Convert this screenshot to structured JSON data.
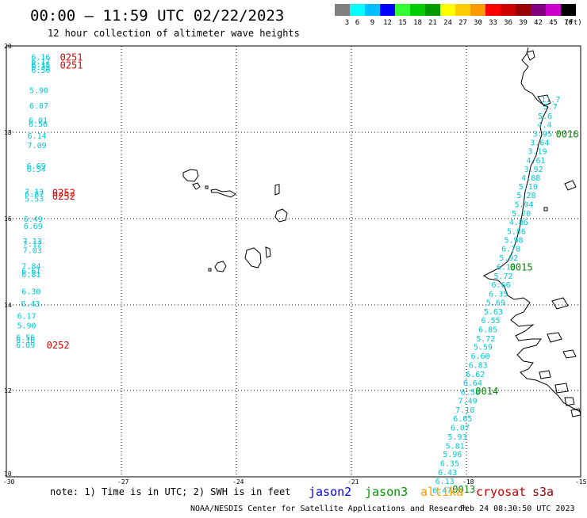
{
  "header": {
    "title": "00:00 — 11:59 UTC 02/22/2023",
    "subtitle": "12 hour collection of altimeter wave heights"
  },
  "scale": {
    "unit": "(ft)",
    "items": [
      {
        "label": "3",
        "color": "#808080"
      },
      {
        "label": "6",
        "color": "#00ffff"
      },
      {
        "label": "9",
        "color": "#00bfff"
      },
      {
        "label": "12",
        "color": "#0000ff"
      },
      {
        "label": "15",
        "color": "#33ff33"
      },
      {
        "label": "18",
        "color": "#00cc00"
      },
      {
        "label": "21",
        "color": "#009900"
      },
      {
        "label": "24",
        "color": "#ffff00"
      },
      {
        "label": "27",
        "color": "#ffcc00"
      },
      {
        "label": "30",
        "color": "#ff9900"
      },
      {
        "label": "33",
        "color": "#ff0000"
      },
      {
        "label": "36",
        "color": "#cc0000"
      },
      {
        "label": "39",
        "color": "#990000"
      },
      {
        "label": "42",
        "color": "#800080"
      },
      {
        "label": "45",
        "color": "#cc00cc"
      },
      {
        "label": "70",
        "color": "#000000"
      }
    ]
  },
  "axes": {
    "lon_labels": [
      "-30",
      "-27",
      "-24",
      "-21",
      "-18",
      "-15"
    ],
    "lat_labels": [
      "20",
      "18",
      "16",
      "14",
      "12",
      "10"
    ]
  },
  "footer": {
    "note": "note: 1) Time is in UTC; 2) SWH is in feet",
    "satellites": [
      {
        "name": "jason2",
        "color": "#0000ff"
      },
      {
        "name": "jason3",
        "color": "#009900"
      },
      {
        "name": "altika",
        "color": "#ff9900"
      },
      {
        "name": "cryosat",
        "color": "#cc0000"
      },
      {
        "name": "s3a",
        "color": "#990000"
      }
    ],
    "credit": "NOAA/NESDIS Center for Satellite Applications and Research",
    "timestamp": "Feb 24 08:30:50 UTC 2023"
  },
  "colors": {
    "wave_text": "#00c8d8",
    "cryosat_time": "#e00000",
    "jason3_time": "#008800",
    "grid": "#000000",
    "coast": "#000000"
  },
  "left_track": {
    "wave_heights": [
      {
        "lat": 19.75,
        "lon": -29.35,
        "v": "6.16"
      },
      {
        "lat": 19.65,
        "lon": -29.35,
        "v": "6.17"
      },
      {
        "lat": 19.58,
        "lon": -29.35,
        "v": "6.15"
      },
      {
        "lat": 19.52,
        "lon": -29.35,
        "v": "6.35"
      },
      {
        "lat": 19.45,
        "lon": -29.35,
        "v": "6.50"
      },
      {
        "lat": 18.98,
        "lon": -29.4,
        "v": "5.90"
      },
      {
        "lat": 18.62,
        "lon": -29.4,
        "v": "6.07"
      },
      {
        "lat": 18.28,
        "lon": -29.42,
        "v": "6.01"
      },
      {
        "lat": 18.2,
        "lon": -29.42,
        "v": "6.56"
      },
      {
        "lat": 17.92,
        "lon": -29.45,
        "v": "6.14"
      },
      {
        "lat": 17.7,
        "lon": -29.45,
        "v": "7.09"
      },
      {
        "lat": 17.22,
        "lon": -29.47,
        "v": "6.69"
      },
      {
        "lat": 17.15,
        "lon": -29.47,
        "v": "6.54"
      },
      {
        "lat": 16.63,
        "lon": -29.52,
        "v": "7.13"
      },
      {
        "lat": 16.57,
        "lon": -29.52,
        "v": "6.87"
      },
      {
        "lat": 16.46,
        "lon": -29.52,
        "v": "5.53"
      },
      {
        "lat": 15.99,
        "lon": -29.55,
        "v": "6.49"
      },
      {
        "lat": 15.83,
        "lon": -29.55,
        "v": "6.69"
      },
      {
        "lat": 15.48,
        "lon": -29.57,
        "v": "7.13"
      },
      {
        "lat": 15.41,
        "lon": -29.57,
        "v": "7.12"
      },
      {
        "lat": 15.27,
        "lon": -29.57,
        "v": "7.03"
      },
      {
        "lat": 14.9,
        "lon": -29.6,
        "v": "7.84"
      },
      {
        "lat": 14.79,
        "lon": -29.6,
        "v": "6.61"
      },
      {
        "lat": 14.71,
        "lon": -29.6,
        "v": "6.81"
      },
      {
        "lat": 14.31,
        "lon": -29.6,
        "v": "6.30"
      },
      {
        "lat": 14.03,
        "lon": -29.62,
        "v": "6.43"
      },
      {
        "lat": 13.74,
        "lon": -29.72,
        "v": "6.17"
      },
      {
        "lat": 13.52,
        "lon": -29.72,
        "v": "5.90"
      },
      {
        "lat": 13.24,
        "lon": -29.75,
        "v": "6.56"
      },
      {
        "lat": 13.18,
        "lon": -29.75,
        "v": "6.16"
      },
      {
        "lat": 13.07,
        "lon": -29.75,
        "v": "6.09"
      }
    ],
    "times": [
      {
        "lat": 19.75,
        "lon": -28.6,
        "v": "0251"
      },
      {
        "lat": 19.57,
        "lon": -28.6,
        "v": "0251"
      },
      {
        "lat": 16.61,
        "lon": -28.8,
        "v": "0252"
      },
      {
        "lat": 16.53,
        "lon": -28.8,
        "v": "0252"
      },
      {
        "lat": 13.07,
        "lon": -28.95,
        "v": "0252"
      }
    ]
  },
  "right_track": {
    "wave_heights": [
      {
        "lat": 18.77,
        "lon": -16.03,
        "v": "11.7"
      },
      {
        "lat": 18.6,
        "lon": -15.98,
        "v": "3.7"
      },
      {
        "lat": 18.38,
        "lon": -16.12,
        "v": "5.6"
      },
      {
        "lat": 18.18,
        "lon": -16.13,
        "v": "4.4"
      },
      {
        "lat": 17.97,
        "lon": -16.25,
        "v": "3.95"
      },
      {
        "lat": 17.77,
        "lon": -16.32,
        "v": "3.64"
      },
      {
        "lat": 17.56,
        "lon": -16.38,
        "v": "3.19"
      },
      {
        "lat": 17.35,
        "lon": -16.42,
        "v": "4.61"
      },
      {
        "lat": 17.15,
        "lon": -16.48,
        "v": "3.92"
      },
      {
        "lat": 16.95,
        "lon": -16.55,
        "v": "4.88"
      },
      {
        "lat": 16.75,
        "lon": -16.62,
        "v": "5.10"
      },
      {
        "lat": 16.54,
        "lon": -16.67,
        "v": "5.28"
      },
      {
        "lat": 16.33,
        "lon": -16.73,
        "v": "5.04"
      },
      {
        "lat": 16.12,
        "lon": -16.8,
        "v": "5.70"
      },
      {
        "lat": 15.92,
        "lon": -16.87,
        "v": "4.86"
      },
      {
        "lat": 15.71,
        "lon": -16.93,
        "v": "5.86"
      },
      {
        "lat": 15.51,
        "lon": -17.0,
        "v": "5.98"
      },
      {
        "lat": 15.3,
        "lon": -17.07,
        "v": "6.78"
      },
      {
        "lat": 15.09,
        "lon": -17.13,
        "v": "5.92"
      },
      {
        "lat": 14.88,
        "lon": -17.2,
        "v": "6.13"
      },
      {
        "lat": 14.67,
        "lon": -17.27,
        "v": "5.72"
      },
      {
        "lat": 14.47,
        "lon": -17.33,
        "v": "6.66"
      },
      {
        "lat": 14.26,
        "lon": -17.4,
        "v": "6.35"
      },
      {
        "lat": 14.05,
        "lon": -17.47,
        "v": "5.69"
      },
      {
        "lat": 13.84,
        "lon": -17.53,
        "v": "5.63"
      },
      {
        "lat": 13.64,
        "lon": -17.6,
        "v": "6.55"
      },
      {
        "lat": 13.43,
        "lon": -17.67,
        "v": "6.85"
      },
      {
        "lat": 13.22,
        "lon": -17.73,
        "v": "5.72"
      },
      {
        "lat": 13.02,
        "lon": -17.8,
        "v": "5.59"
      },
      {
        "lat": 12.81,
        "lon": -17.87,
        "v": "6.60"
      },
      {
        "lat": 12.6,
        "lon": -17.93,
        "v": "6.83"
      },
      {
        "lat": 12.39,
        "lon": -18.0,
        "v": "6.62"
      },
      {
        "lat": 12.19,
        "lon": -18.07,
        "v": "6.64"
      },
      {
        "lat": 11.98,
        "lon": -18.13,
        "v": "6.58"
      },
      {
        "lat": 11.77,
        "lon": -18.2,
        "v": "7.49"
      },
      {
        "lat": 11.56,
        "lon": -18.27,
        "v": "7.10"
      },
      {
        "lat": 11.36,
        "lon": -18.33,
        "v": "6.65"
      },
      {
        "lat": 11.15,
        "lon": -18.4,
        "v": "6.07"
      },
      {
        "lat": 10.94,
        "lon": -18.47,
        "v": "5.93"
      },
      {
        "lat": 10.73,
        "lon": -18.53,
        "v": "5.81"
      },
      {
        "lat": 10.53,
        "lon": -18.6,
        "v": "5.96"
      },
      {
        "lat": 10.32,
        "lon": -18.67,
        "v": "6.35"
      },
      {
        "lat": 10.11,
        "lon": -18.73,
        "v": "6.43"
      },
      {
        "lat": 9.91,
        "lon": -18.8,
        "v": "6.13"
      },
      {
        "lat": 9.7,
        "lon": -18.87,
        "v": "6.47"
      }
    ],
    "times": [
      {
        "lat": 17.97,
        "lon": -15.65,
        "v": "0016"
      },
      {
        "lat": 14.88,
        "lon": -16.85,
        "v": "0015"
      },
      {
        "lat": 12.0,
        "lon": -17.75,
        "v": "0014"
      },
      {
        "lat": 9.72,
        "lon": -18.35,
        "v": "0013"
      }
    ]
  }
}
